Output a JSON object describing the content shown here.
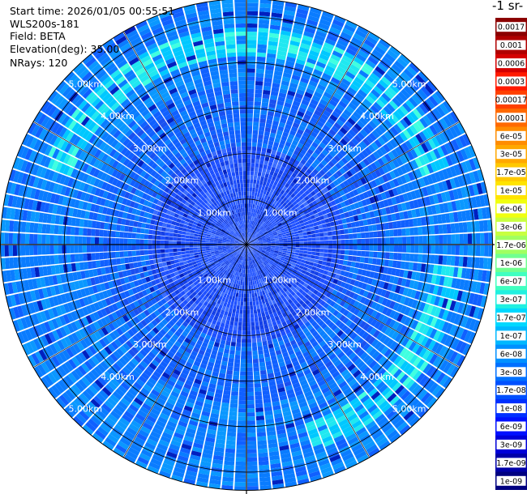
{
  "header": {
    "start_time": "Start time: 2026/01/05 00:55:51",
    "device": "WLS200s-181",
    "field": "Field: BETA",
    "elevation": "Elevation(deg): 35.00",
    "nrays": "NRays: 120"
  },
  "colorbar": {
    "unit_label": "-1 sr-",
    "labels": [
      "0.0017",
      "0.001",
      "0.0006",
      "0.0003",
      "0.00017",
      "0.0001",
      "6e-05",
      "3e-05",
      "1.7e-05",
      "1e-05",
      "6e-06",
      "3e-06",
      "1.7e-06",
      "1e-06",
      "6e-07",
      "3e-07",
      "1.7e-07",
      "1e-07",
      "6e-08",
      "3e-08",
      "1.7e-08",
      "1e-08",
      "6e-09",
      "3e-09",
      "1.7e-09",
      "1e-09"
    ],
    "colors": [
      "#8b0000",
      "#b00000",
      "#d40000",
      "#ff1a00",
      "#ff4000",
      "#ff6a00",
      "#ff8c00",
      "#ffa800",
      "#ffc800",
      "#ffe400",
      "#f0ff10",
      "#c8ff40",
      "#a0ff60",
      "#70ff90",
      "#40ffc0",
      "#20f0e0",
      "#00d8ff",
      "#00b8ff",
      "#0090ff",
      "#0070ff",
      "#0050ff",
      "#0030ff",
      "#0010ff",
      "#0000d8",
      "#0000a8",
      "#000080"
    ]
  },
  "chart_data": {
    "type": "ppi-polar",
    "field": "BETA",
    "elevation_deg": 35.0,
    "n_rays": 120,
    "range_rings_km": [
      1,
      2,
      3,
      4,
      5
    ],
    "ring_labels": [
      "1.00km",
      "2.00km",
      "3.00km",
      "4.00km",
      "5.00km"
    ],
    "max_range_km": 5.4,
    "dominant_value_range": [
      1e-08,
      6e-08
    ],
    "enhanced_band": {
      "range_km": [
        4.1,
        4.8
      ],
      "value": 1.7e-07
    }
  }
}
